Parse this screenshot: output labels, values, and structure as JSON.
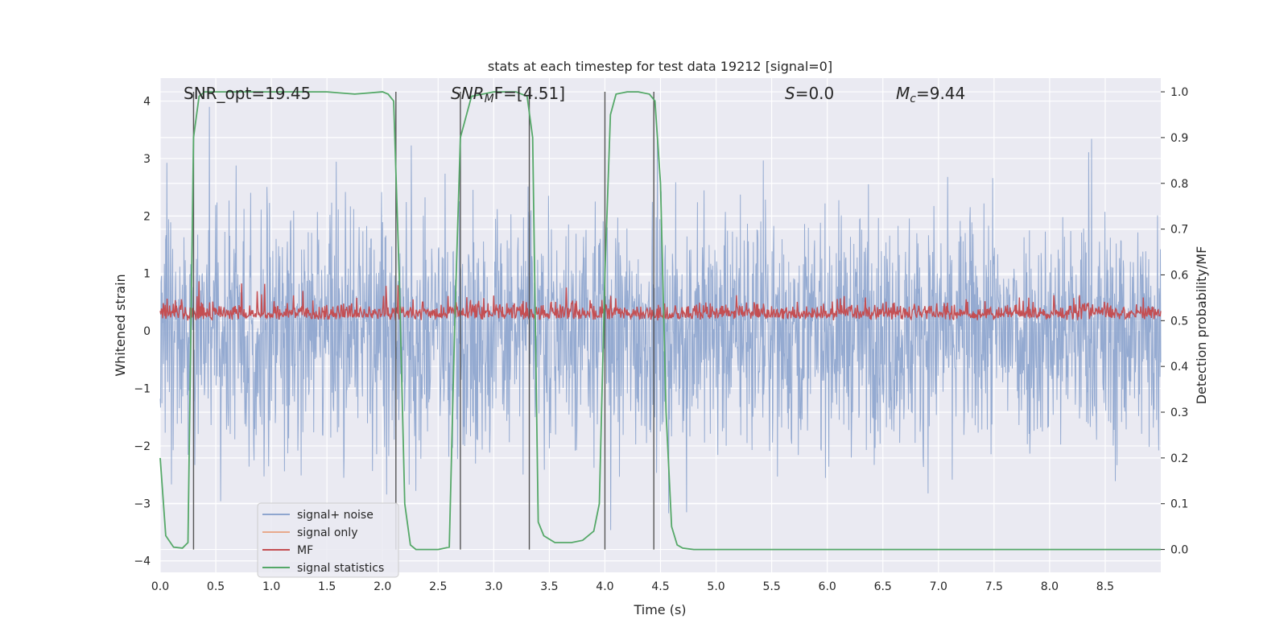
{
  "chart_data": {
    "type": "line",
    "title": "stats at each timestep for test data 19212 [signal=0]",
    "xlabel": "Time (s)",
    "ylabel_left": "Whitened strain",
    "ylabel_right": "Detection probability/MF",
    "xlim": [
      0.0,
      9.0
    ],
    "ylim_left": [
      -4.2,
      4.4
    ],
    "ylim_right": [
      -0.05,
      1.03
    ],
    "x_ticks": [
      "0.0",
      "0.5",
      "1.0",
      "1.5",
      "2.0",
      "2.5",
      "3.0",
      "3.5",
      "4.0",
      "4.5",
      "5.0",
      "5.5",
      "6.0",
      "6.5",
      "7.0",
      "7.5",
      "8.0",
      "8.5"
    ],
    "y_ticks_left": [
      "−4",
      "−3",
      "−2",
      "−1",
      "0",
      "1",
      "2",
      "3",
      "4"
    ],
    "y_ticks_right": [
      "0.0",
      "0.1",
      "0.2",
      "0.3",
      "0.4",
      "0.5",
      "0.6",
      "0.7",
      "0.8",
      "0.9",
      "1.0"
    ],
    "grid": true,
    "annotations": {
      "snr_opt": "SNR_opt=19.45",
      "snr_mf_sym": "SNR",
      "snr_mf_sub": "M",
      "snr_mf_rest": "F=[4.51]",
      "s_sym": "S",
      "s_rest": "=0.0",
      "mc_sym": "M",
      "mc_sub": "c",
      "mc_rest": "=9.44"
    },
    "legend": {
      "placement": "lower-left",
      "entries": [
        "signal+ noise",
        "signal only",
        "MF",
        "signal statistics"
      ]
    },
    "colors": {
      "signal_noise": "#8fa6cf",
      "signal_only": "#e8a98c",
      "mf": "#c44e52",
      "statistics": "#55a868",
      "vlines": "#555555",
      "background": "#eaeaf2"
    },
    "series": [
      {
        "name": "signal+ noise",
        "axis": "left",
        "description_of_values": "strain noise, amplitude range",
        "y_range": [
          -3.8,
          3.9
        ]
      },
      {
        "name": "MF",
        "axis": "right",
        "y_range": [
          0.5,
          0.62
        ]
      },
      {
        "name": "signal statistics",
        "axis": "right",
        "x": [
          0.0,
          0.05,
          0.12,
          0.2,
          0.25,
          0.3,
          0.35,
          0.4,
          0.5,
          0.75,
          1.0,
          1.25,
          1.5,
          1.75,
          2.0,
          2.05,
          2.1,
          2.15,
          2.2,
          2.25,
          2.3,
          2.4,
          2.5,
          2.6,
          2.65,
          2.7,
          2.8,
          3.0,
          3.2,
          3.3,
          3.35,
          3.4,
          3.45,
          3.55,
          3.7,
          3.8,
          3.9,
          3.95,
          4.0,
          4.05,
          4.1,
          4.2,
          4.3,
          4.4,
          4.45,
          4.5,
          4.55,
          4.6,
          4.65,
          4.7,
          4.8,
          5.0,
          6.0,
          7.0,
          8.0,
          9.0
        ],
        "y": [
          0.2,
          0.03,
          0.005,
          0.003,
          0.015,
          0.9,
          0.99,
          1.0,
          1.0,
          1.0,
          1.0,
          1.0,
          1.0,
          0.995,
          1.0,
          0.995,
          0.98,
          0.6,
          0.1,
          0.01,
          0.0,
          0.0,
          0.0,
          0.005,
          0.5,
          0.9,
          0.99,
          1.0,
          1.0,
          0.99,
          0.9,
          0.06,
          0.03,
          0.015,
          0.015,
          0.02,
          0.04,
          0.1,
          0.6,
          0.95,
          0.995,
          1.0,
          1.0,
          0.995,
          0.98,
          0.8,
          0.3,
          0.05,
          0.01,
          0.003,
          0.0,
          0.0,
          0.0,
          0.0,
          0.0,
          0.0
        ]
      }
    ],
    "vertical_lines_x": [
      0.3,
      2.12,
      2.7,
      3.32,
      4.0,
      4.44
    ]
  }
}
